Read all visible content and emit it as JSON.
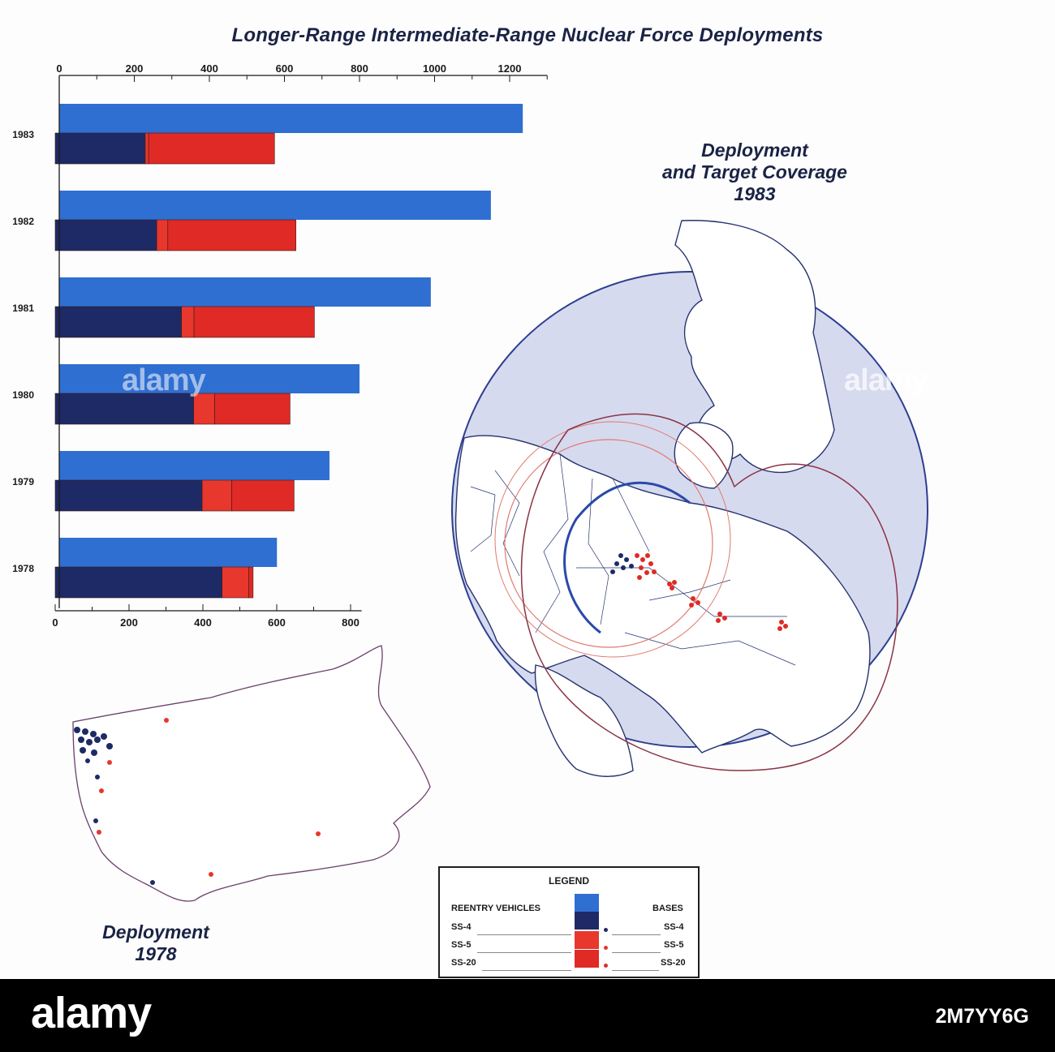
{
  "title": "Longer-Range Intermediate-Range Nuclear Force Deployments",
  "map_1983_title": [
    "Deployment",
    "and Target Coverage",
    "1983"
  ],
  "map_1978_title": [
    "Deployment",
    "1978"
  ],
  "legend": {
    "title": "LEGEND",
    "reentry_label": "REENTRY VEHICLES",
    "bases_label": "BASES",
    "items": [
      "SS-4",
      "SS-5",
      "SS-20"
    ],
    "colors": {
      "reentry_total": "#2f6fd1",
      "ss4": "#1e2a66",
      "ss5": "#e8372c",
      "ss20": "#e02a25"
    }
  },
  "watermark": {
    "brand": "alamy",
    "image_code": "2M7YY6G"
  },
  "chart_data": {
    "type": "bar",
    "title": "Longer-Range Intermediate-Range Nuclear Force Deployments",
    "categories": [
      "1983",
      "1982",
      "1981",
      "1980",
      "1979",
      "1978"
    ],
    "top_axis": {
      "ticks": [
        0,
        200,
        400,
        600,
        800,
        1000,
        1200
      ],
      "range": [
        0,
        1300
      ],
      "series": "REENTRY VEHICLES"
    },
    "bottom_axis": {
      "ticks": [
        0,
        200,
        400,
        600,
        800
      ],
      "range": [
        0,
        900
      ],
      "series": "BASES"
    },
    "series": [
      {
        "name": "REENTRY VEHICLES",
        "axis": "top",
        "values": [
          1235,
          1150,
          990,
          800,
          720,
          580
        ]
      },
      {
        "name": "SS-4",
        "axis": "bottom",
        "values": [
          244,
          275,
          342,
          375,
          398,
          452
        ]
      },
      {
        "name": "SS-5",
        "axis": "bottom",
        "values": [
          9,
          30,
          34,
          57,
          80,
          72
        ]
      },
      {
        "name": "SS-20",
        "axis": "bottom",
        "values": [
          341,
          347,
          326,
          204,
          169,
          12
        ]
      }
    ]
  }
}
